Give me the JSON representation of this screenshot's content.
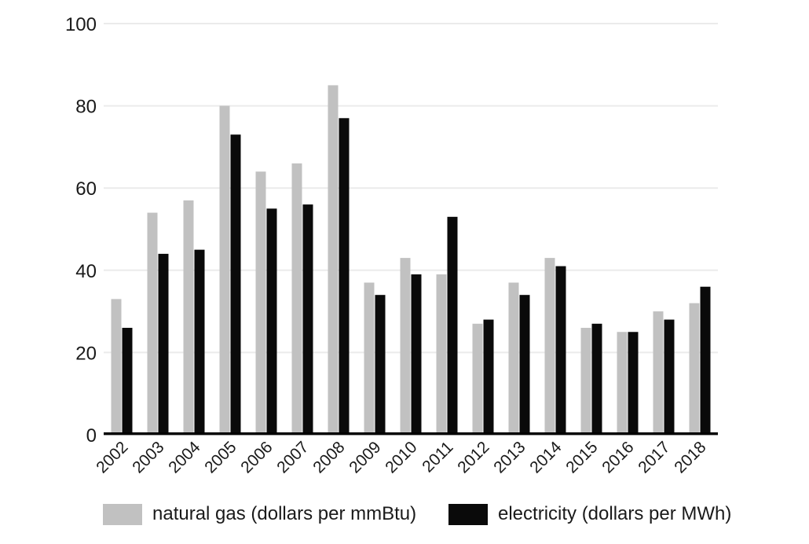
{
  "chart_data": {
    "type": "bar",
    "categories": [
      "2002",
      "2003",
      "2004",
      "2005",
      "2006",
      "2007",
      "2008",
      "2009",
      "2010",
      "2011",
      "2012",
      "2013",
      "2014",
      "2015",
      "2016",
      "2017",
      "2018"
    ],
    "series": [
      {
        "name": "natural gas (dollars per mmBtu)",
        "color": "#c1c1c1",
        "values": [
          33,
          54,
          57,
          80,
          64,
          66,
          85,
          37,
          43,
          39,
          27,
          37,
          43,
          26,
          25,
          30,
          32
        ]
      },
      {
        "name": "electricity (dollars per MWh)",
        "color": "#0a0a0a",
        "values": [
          26,
          44,
          45,
          73,
          55,
          56,
          77,
          34,
          39,
          53,
          28,
          34,
          41,
          27,
          25,
          28,
          36
        ]
      }
    ],
    "title": "",
    "xlabel": "",
    "ylabel": "",
    "ylim": [
      0,
      100
    ],
    "yticks": [
      0,
      20,
      40,
      60,
      80,
      100
    ],
    "grid": "horizontal",
    "legend_position": "bottom"
  },
  "legend": {
    "items": [
      {
        "label": "natural gas (dollars per mmBtu)",
        "color": "#c1c1c1"
      },
      {
        "label": "electricity (dollars per MWh)",
        "color": "#0a0a0a"
      }
    ]
  },
  "colors": {
    "background": "#ffffff",
    "gridline": "#ebebeb",
    "axis": "#000000",
    "text": "#1a1a1a"
  }
}
